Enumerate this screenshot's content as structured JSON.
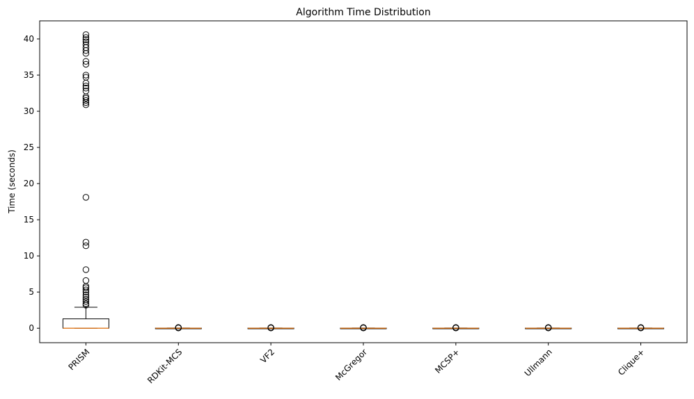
{
  "chart_data": {
    "type": "box",
    "title": "Algorithm Time Distribution",
    "xlabel": "",
    "ylabel": "Time (seconds)",
    "ylim": [
      -2,
      42.5
    ],
    "yticks": [
      0,
      5,
      10,
      15,
      20,
      25,
      30,
      35,
      40
    ],
    "grid": false,
    "categories": [
      "PRISM",
      "RDKit-MCS",
      "VF2",
      "McGregor",
      "MCSP+",
      "Ullmann",
      "Clique+"
    ],
    "boxes": [
      {
        "q1": 0.0,
        "median": 0.0,
        "q3": 1.3,
        "whisker_low": 0.0,
        "whisker_high": 2.9,
        "outliers": [
          3.2,
          3.4,
          3.7,
          4.0,
          4.3,
          4.6,
          5.0,
          5.3,
          5.6,
          5.8,
          6.6,
          8.1,
          11.4,
          11.9,
          18.1,
          30.9,
          31.2,
          31.5,
          31.8,
          32.0,
          32.8,
          33.2,
          33.5,
          33.9,
          34.7,
          35.0,
          36.5,
          36.9,
          38.0,
          38.4,
          38.8,
          39.2,
          39.6,
          39.9,
          40.2,
          40.6
        ]
      },
      {
        "q1": 0.0,
        "median": 0.0,
        "q3": 0.02,
        "whisker_low": 0.0,
        "whisker_high": 0.03,
        "outliers": [
          0.04,
          0.06,
          0.08,
          0.1
        ]
      },
      {
        "q1": 0.0,
        "median": 0.0,
        "q3": 0.02,
        "whisker_low": 0.0,
        "whisker_high": 0.03,
        "outliers": [
          0.04,
          0.06,
          0.08,
          0.1
        ]
      },
      {
        "q1": 0.0,
        "median": 0.0,
        "q3": 0.02,
        "whisker_low": 0.0,
        "whisker_high": 0.03,
        "outliers": [
          0.04,
          0.06,
          0.08,
          0.1
        ]
      },
      {
        "q1": 0.0,
        "median": 0.0,
        "q3": 0.02,
        "whisker_low": 0.0,
        "whisker_high": 0.03,
        "outliers": [
          0.04,
          0.06,
          0.08,
          0.1
        ]
      },
      {
        "q1": 0.0,
        "median": 0.0,
        "q3": 0.02,
        "whisker_low": 0.0,
        "whisker_high": 0.03,
        "outliers": [
          0.04,
          0.06,
          0.08,
          0.1
        ]
      },
      {
        "q1": 0.0,
        "median": 0.0,
        "q3": 0.02,
        "whisker_low": 0.0,
        "whisker_high": 0.03,
        "outliers": [
          0.04,
          0.06,
          0.08,
          0.1
        ]
      }
    ],
    "colors": {
      "box_edge": "#000000",
      "median_line": "#ff7f0e",
      "outlier_edge": "#000000"
    }
  }
}
